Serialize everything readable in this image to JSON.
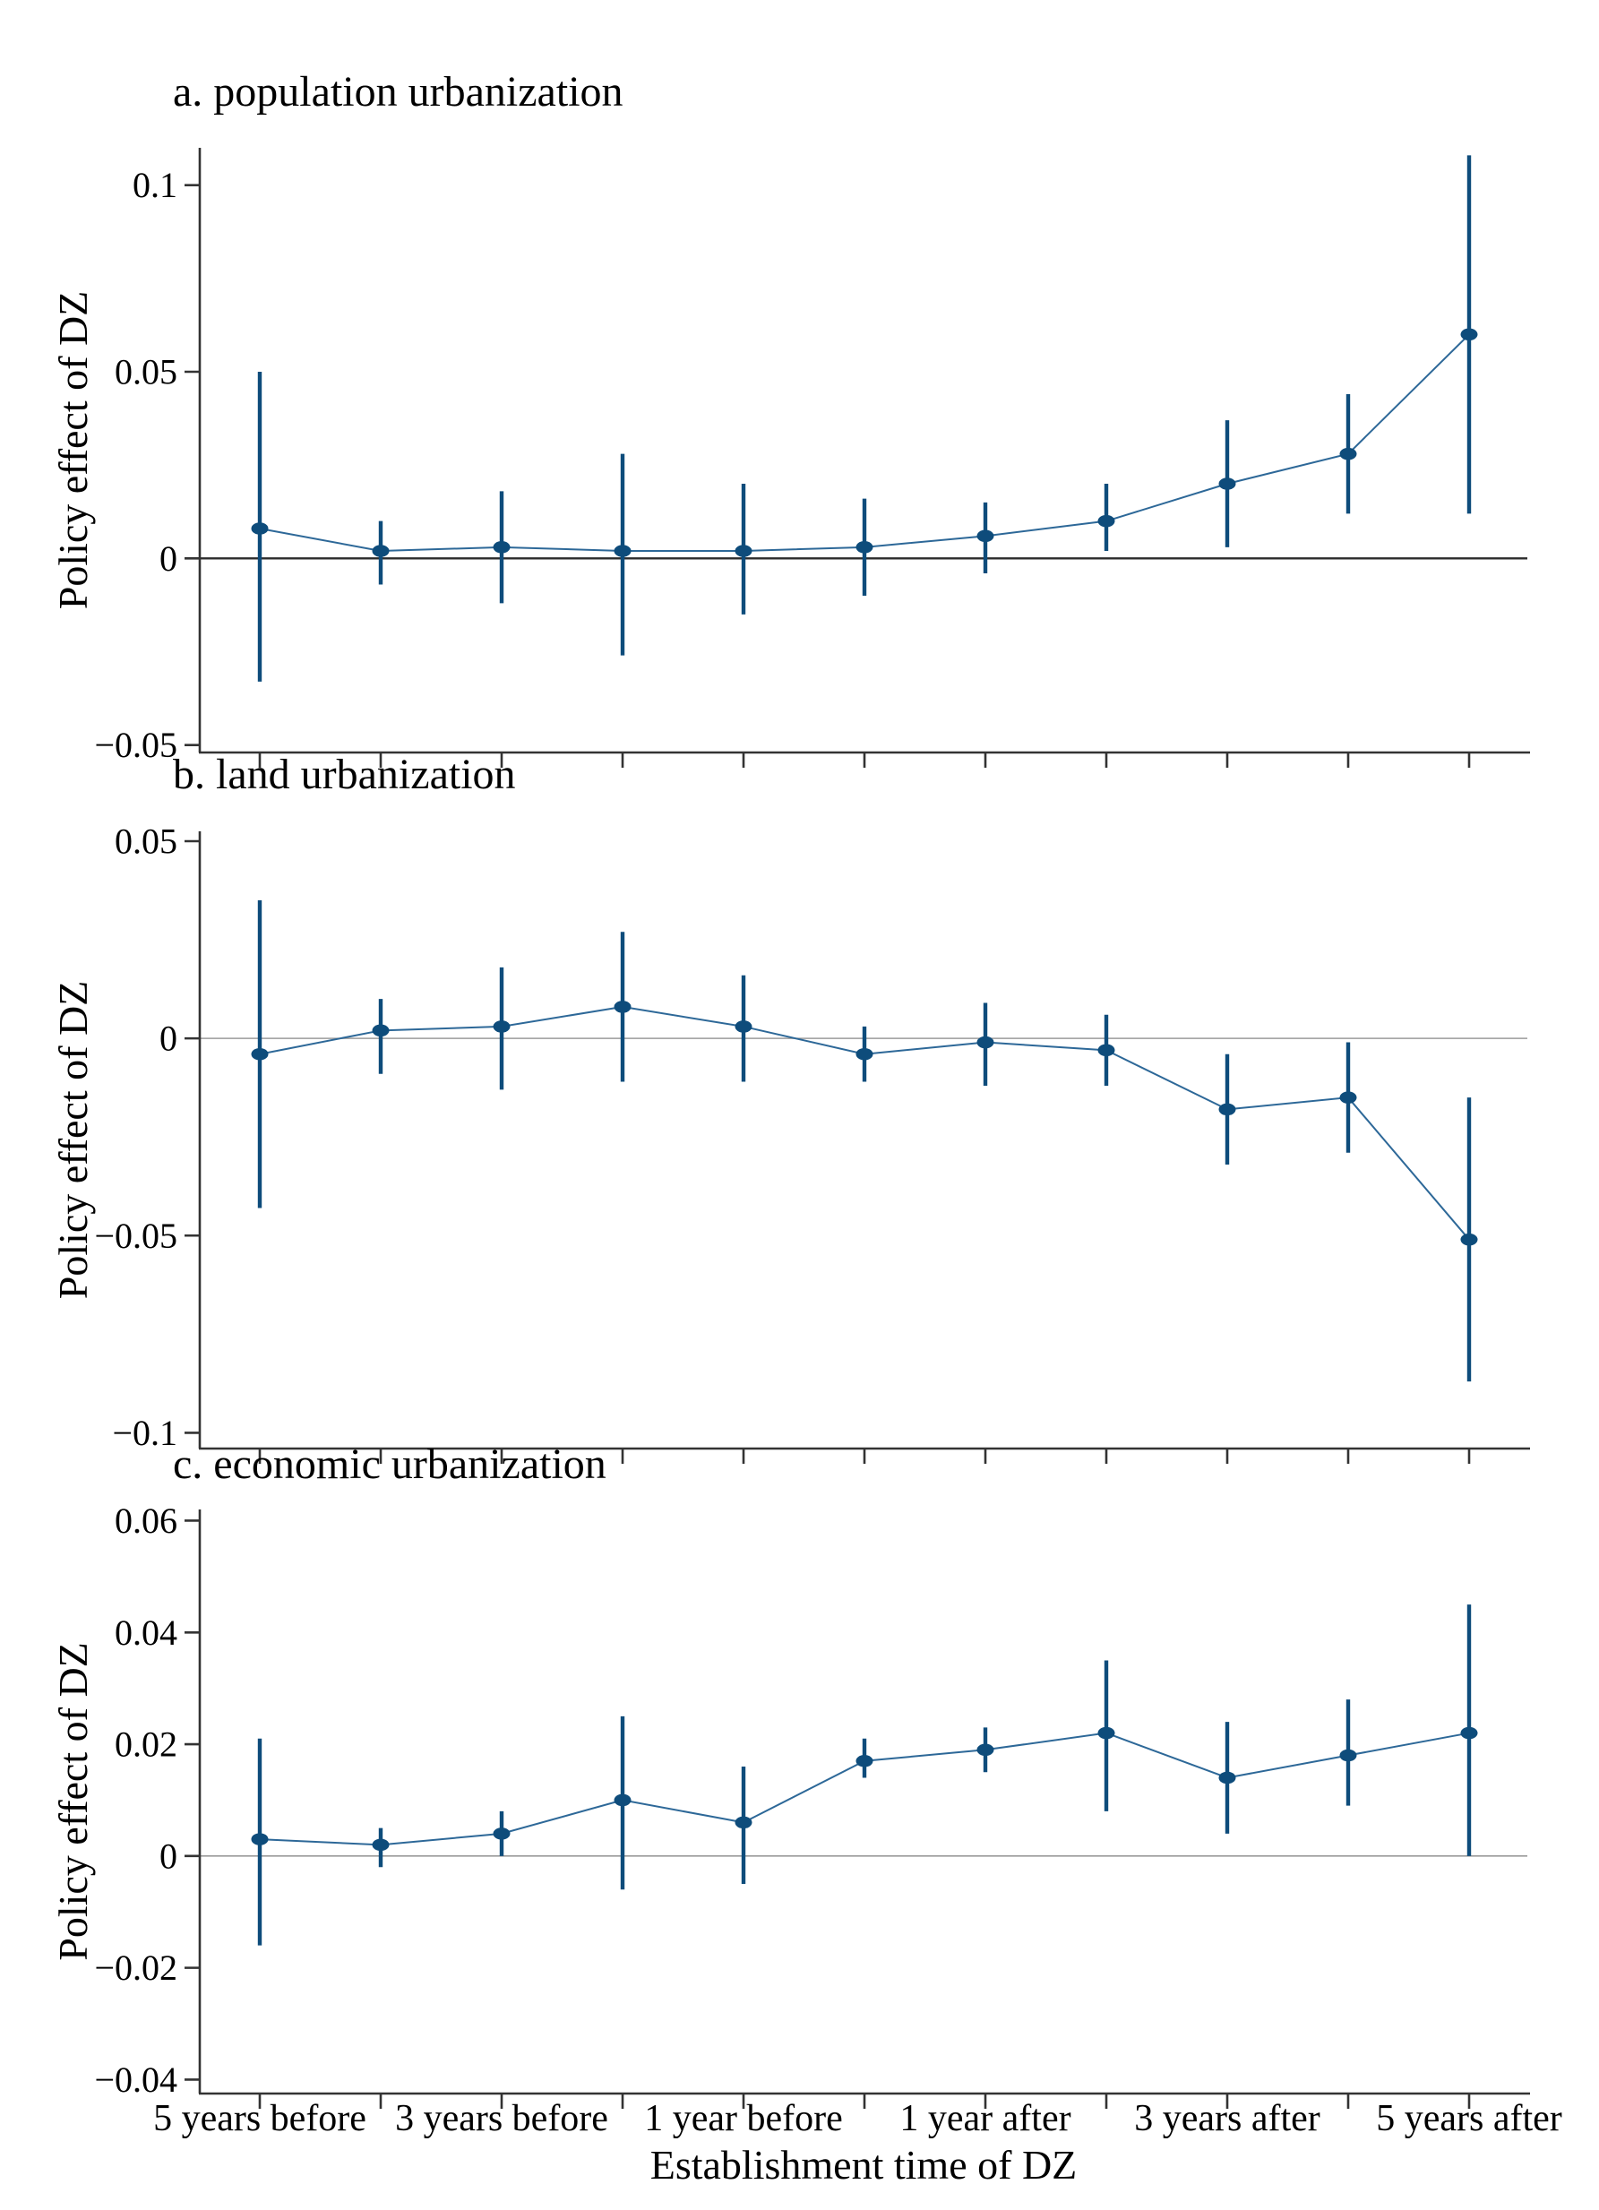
{
  "figure": {
    "background": "#ffffff",
    "point_color": "#0e4c7b",
    "series_line_color": "#2d6898",
    "axis_color": "#333333",
    "zero_line_dark_color": "#2b2b2b",
    "zero_line_gray_color": "#9b9b9b",
    "xlabel": "Establishment time of DZ",
    "x_tick_labels": [
      "5 years before",
      "3 years before",
      "1 year before",
      "1 year after",
      "3 years after",
      "5 years after"
    ],
    "labeled_tick_indices": [
      0,
      2,
      4,
      6,
      8,
      10
    ],
    "marker_shape": "filled-ellipse",
    "error_bar_style": "vertical-line-no-caps"
  },
  "chart_data": [
    {
      "type": "line",
      "panel": "a",
      "title": "a. population urbanization",
      "ylabel": "Policy effect of DZ",
      "xlabel": "Establishment time of DZ",
      "x_event_time": [
        -5,
        -4,
        -3,
        -2,
        -1,
        0,
        1,
        2,
        3,
        4,
        5
      ],
      "x_tick_labels": [
        "5 years before",
        "3 years before",
        "1 year before",
        "1 year after",
        "3 years after",
        "5 years after"
      ],
      "labeled_tick_indices": [
        0,
        2,
        4,
        6,
        8,
        10
      ],
      "values": [
        0.008,
        0.002,
        0.003,
        0.002,
        0.002,
        0.003,
        0.006,
        0.01,
        0.02,
        0.028,
        0.06
      ],
      "ci_low": [
        -0.033,
        -0.007,
        -0.012,
        -0.026,
        -0.015,
        -0.01,
        -0.004,
        0.002,
        0.003,
        0.012,
        0.012
      ],
      "ci_high": [
        0.05,
        0.01,
        0.018,
        0.028,
        0.02,
        0.016,
        0.015,
        0.02,
        0.037,
        0.044,
        0.108
      ],
      "yticks": [
        0.1,
        0.05,
        0,
        -0.05
      ],
      "ytick_labels": [
        "0.1",
        "0.05",
        "0",
        "−0.05"
      ],
      "ylim": [
        -0.052,
        0.11
      ],
      "zero_line": "dark",
      "grid": false,
      "legend": "none"
    },
    {
      "type": "line",
      "panel": "b",
      "title": "b. land urbanization",
      "ylabel": "Policy effect of DZ",
      "xlabel": "Establishment time of DZ",
      "x_event_time": [
        -5,
        -4,
        -3,
        -2,
        -1,
        0,
        1,
        2,
        3,
        4,
        5
      ],
      "x_tick_labels": [
        "5 years before",
        "3 years before",
        "1 year before",
        "1 year after",
        "3 years after",
        "5 years after"
      ],
      "labeled_tick_indices": [
        0,
        2,
        4,
        6,
        8,
        10
      ],
      "values": [
        -0.004,
        0.002,
        0.003,
        0.008,
        0.003,
        -0.004,
        -0.001,
        -0.003,
        -0.018,
        -0.015,
        -0.051
      ],
      "ci_low": [
        -0.043,
        -0.009,
        -0.013,
        -0.011,
        -0.011,
        -0.011,
        -0.012,
        -0.012,
        -0.032,
        -0.029,
        -0.087
      ],
      "ci_high": [
        0.035,
        0.01,
        0.018,
        0.027,
        0.016,
        0.003,
        0.009,
        0.006,
        -0.004,
        -0.001,
        -0.015
      ],
      "yticks": [
        0.05,
        0,
        -0.05,
        -0.1
      ],
      "ytick_labels": [
        "0.05",
        "0",
        "−0.05",
        "−0.1"
      ],
      "ylim": [
        -0.104,
        0.0525
      ],
      "zero_line": "gray",
      "grid": false,
      "legend": "none"
    },
    {
      "type": "line",
      "panel": "c",
      "title": "c. economic urbanization",
      "ylabel": "Policy effect of DZ",
      "xlabel": "Establishment time of DZ",
      "x_event_time": [
        -5,
        -4,
        -3,
        -2,
        -1,
        0,
        1,
        2,
        3,
        4,
        5
      ],
      "x_tick_labels": [
        "5 years before",
        "3 years before",
        "1 year before",
        "1 year after",
        "3 years after",
        "5 years after"
      ],
      "labeled_tick_indices": [
        0,
        2,
        4,
        6,
        8,
        10
      ],
      "values": [
        0.003,
        0.002,
        0.004,
        0.01,
        0.006,
        0.017,
        0.019,
        0.022,
        0.014,
        0.018,
        0.022
      ],
      "ci_low": [
        -0.016,
        -0.002,
        0.0,
        -0.006,
        -0.005,
        0.014,
        0.015,
        0.008,
        0.004,
        0.009,
        0.0
      ],
      "ci_high": [
        0.021,
        0.005,
        0.008,
        0.025,
        0.016,
        0.021,
        0.023,
        0.035,
        0.024,
        0.028,
        0.045
      ],
      "yticks": [
        0.06,
        0.04,
        0.02,
        0,
        -0.02,
        -0.04
      ],
      "ytick_labels": [
        "0.06",
        "0.04",
        "0.02",
        "0",
        "−0.02",
        "−0.04"
      ],
      "ylim": [
        -0.0425,
        0.062
      ],
      "zero_line": "gray",
      "grid": false,
      "legend": "none"
    }
  ]
}
